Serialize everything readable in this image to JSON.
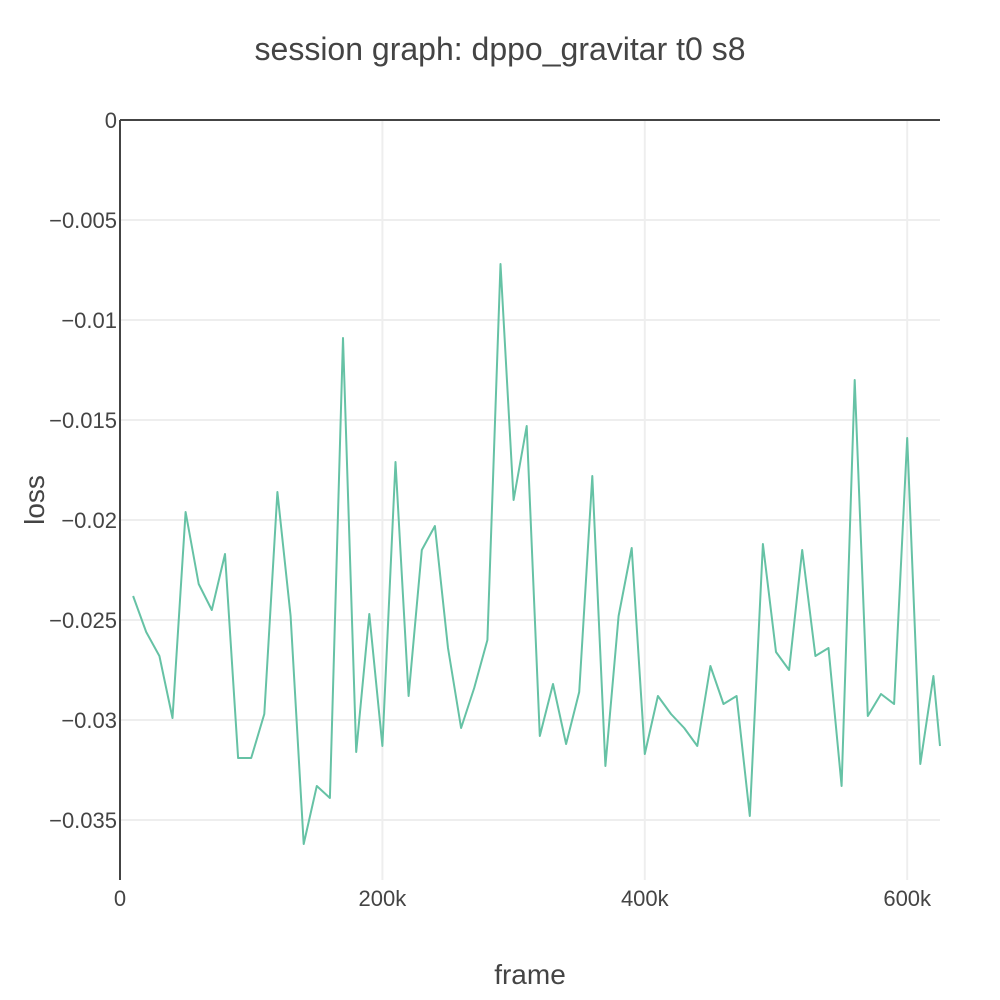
{
  "chart_data": {
    "type": "line",
    "title": "session graph: dppo_gravitar t0 s8",
    "xlabel": "frame",
    "ylabel": "loss",
    "xlim": [
      0,
      625000
    ],
    "ylim": [
      -0.038,
      0
    ],
    "x_ticks": [
      {
        "value": 0,
        "label": "0"
      },
      {
        "value": 200000,
        "label": "200k"
      },
      {
        "value": 400000,
        "label": "400k"
      },
      {
        "value": 600000,
        "label": "600k"
      }
    ],
    "y_ticks": [
      {
        "value": 0,
        "label": "0"
      },
      {
        "value": -0.005,
        "label": "−0.005"
      },
      {
        "value": -0.01,
        "label": "−0.01"
      },
      {
        "value": -0.015,
        "label": "−0.015"
      },
      {
        "value": -0.02,
        "label": "−0.02"
      },
      {
        "value": -0.025,
        "label": "−0.025"
      },
      {
        "value": -0.03,
        "label": "−0.03"
      },
      {
        "value": -0.035,
        "label": "−0.035"
      }
    ],
    "grid": true,
    "legend": "none",
    "series": [
      {
        "color": "#66c2a5",
        "x": [
          10000,
          20000,
          30000,
          40000,
          50000,
          60000,
          70000,
          80000,
          90000,
          100000,
          110000,
          120000,
          130000,
          140000,
          150000,
          160000,
          170000,
          180000,
          190000,
          200000,
          210000,
          220000,
          230000,
          240000,
          250000,
          260000,
          270000,
          280000,
          290000,
          300000,
          310000,
          320000,
          330000,
          340000,
          350000,
          360000,
          370000,
          380000,
          390000,
          400000,
          410000,
          420000,
          430000,
          440000,
          450000,
          460000,
          470000,
          480000,
          490000,
          500000,
          510000,
          520000,
          530000,
          540000,
          550000,
          560000,
          570000,
          580000,
          590000,
          600000,
          610000,
          620000,
          625000
        ],
        "y": [
          -0.0238,
          -0.0256,
          -0.0268,
          -0.0299,
          -0.0196,
          -0.0232,
          -0.0245,
          -0.0217,
          -0.0319,
          -0.0319,
          -0.0297,
          -0.0186,
          -0.0248,
          -0.0362,
          -0.0333,
          -0.0339,
          -0.0109,
          -0.0316,
          -0.0247,
          -0.0313,
          -0.0171,
          -0.0288,
          -0.0215,
          -0.0203,
          -0.0264,
          -0.0304,
          -0.0284,
          -0.026,
          -0.0072,
          -0.019,
          -0.0153,
          -0.0308,
          -0.0282,
          -0.0312,
          -0.0286,
          -0.0178,
          -0.0323,
          -0.0248,
          -0.0214,
          -0.0317,
          -0.0288,
          -0.0297,
          -0.0304,
          -0.0313,
          -0.0273,
          -0.0292,
          -0.0288,
          -0.0348,
          -0.0212,
          -0.0266,
          -0.0275,
          -0.0215,
          -0.0268,
          -0.0264,
          -0.0333,
          -0.013,
          -0.0298,
          -0.0287,
          -0.0292,
          -0.0159,
          -0.0322,
          -0.0278,
          -0.0313
        ]
      }
    ]
  }
}
